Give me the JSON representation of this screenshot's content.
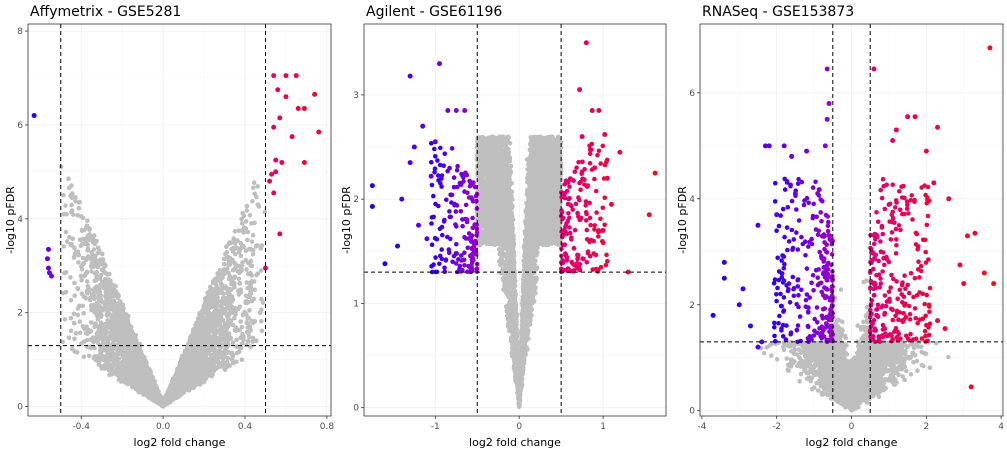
{
  "colors": {
    "nonsignificant": "#bebebe",
    "down_gradient": [
      "#1400f0",
      "#9900cc"
    ],
    "up_gradient": [
      "#dd0077",
      "#ee1111"
    ],
    "threshold_line": "#000000",
    "grid": "#ebebeb",
    "panel_border": "#333333"
  },
  "chart_data": [
    {
      "type": "scatter",
      "title": "Affymetrix - GSE5281",
      "xlabel": "log2 fold change",
      "ylabel": "-log10 pFDR",
      "xlim": [
        -0.66,
        0.82
      ],
      "ylim": [
        -0.2,
        8.15
      ],
      "xticks": [
        -0.4,
        0.0,
        0.4,
        0.8
      ],
      "xtick_labels": [
        "-0.4",
        "0.0",
        "0.4",
        "0.8"
      ],
      "yticks": [
        0,
        2,
        4,
        6,
        8
      ],
      "ytick_labels": [
        "0",
        "2",
        "4",
        "6",
        "8"
      ],
      "fc_threshold": [
        -0.5,
        0.5
      ],
      "pfdr_threshold": 1.3,
      "grid": true,
      "legend": "none",
      "density": {
        "n": 4500,
        "xscale": 0.2,
        "ystretch": 0.11,
        "spread": 0.1,
        "xfactor": 0.06,
        "baseline": 0,
        "ymax": 7.1,
        "seed": 11
      },
      "down_points": [
        {
          "x": -0.63,
          "y": 6.2
        },
        {
          "x": -0.56,
          "y": 3.35
        },
        {
          "x": -0.565,
          "y": 3.15
        },
        {
          "x": -0.56,
          "y": 2.95
        },
        {
          "x": -0.555,
          "y": 2.85
        },
        {
          "x": -0.545,
          "y": 2.78
        }
      ],
      "up_points": [
        {
          "x": 0.54,
          "y": 7.05
        },
        {
          "x": 0.6,
          "y": 7.05
        },
        {
          "x": 0.65,
          "y": 7.05
        },
        {
          "x": 0.56,
          "y": 6.75
        },
        {
          "x": 0.6,
          "y": 6.6
        },
        {
          "x": 0.74,
          "y": 6.65
        },
        {
          "x": 0.76,
          "y": 5.85
        },
        {
          "x": 0.66,
          "y": 6.35
        },
        {
          "x": 0.69,
          "y": 6.35
        },
        {
          "x": 0.57,
          "y": 6.15
        },
        {
          "x": 0.54,
          "y": 5.95
        },
        {
          "x": 0.63,
          "y": 5.75
        },
        {
          "x": 0.55,
          "y": 5.25
        },
        {
          "x": 0.58,
          "y": 5.2
        },
        {
          "x": 0.69,
          "y": 5.2
        },
        {
          "x": 0.55,
          "y": 5.0
        },
        {
          "x": 0.52,
          "y": 4.8
        },
        {
          "x": 0.54,
          "y": 4.55
        },
        {
          "x": 0.57,
          "y": 3.68
        },
        {
          "x": 0.5,
          "y": 2.95
        },
        {
          "x": 0.53,
          "y": 4.95
        }
      ]
    },
    {
      "type": "scatter",
      "title": "Agilent - GSE61196",
      "xlabel": "log2 fold change",
      "ylabel": "-log10 pFDR",
      "xlim": [
        -1.85,
        1.75
      ],
      "ylim": [
        -0.08,
        3.68
      ],
      "xticks": [
        -1,
        0,
        1
      ],
      "xtick_labels": [
        "-1",
        "0",
        "1"
      ],
      "yticks": [
        0,
        1,
        2,
        3
      ],
      "ytick_labels": [
        "0",
        "1",
        "2",
        "3"
      ],
      "fc_threshold": [
        -0.5,
        0.5
      ],
      "pfdr_threshold": 1.3,
      "grid": true,
      "legend": "none",
      "density": {
        "n": 6500,
        "xscale": 0.42,
        "ystretch": 0.28,
        "spread": 0.22,
        "xfactor": 0.07,
        "baseline": 0,
        "ymax": 2.6,
        "seed": 22
      },
      "band": {
        "n": 340,
        "seed": 33
      },
      "down_points": [
        {
          "x": -1.75,
          "y": 2.13
        },
        {
          "x": -1.75,
          "y": 1.93
        },
        {
          "x": -1.6,
          "y": 1.38
        },
        {
          "x": -1.4,
          "y": 2.0
        },
        {
          "x": -1.3,
          "y": 2.35
        },
        {
          "x": -1.25,
          "y": 2.5
        },
        {
          "x": -1.15,
          "y": 2.7
        },
        {
          "x": -1.05,
          "y": 2.22
        },
        {
          "x": -1.3,
          "y": 3.18
        },
        {
          "x": -0.95,
          "y": 3.3
        },
        {
          "x": -0.85,
          "y": 2.85
        },
        {
          "x": -0.75,
          "y": 2.85
        },
        {
          "x": -0.65,
          "y": 2.85
        },
        {
          "x": -1.0,
          "y": 2.55
        },
        {
          "x": -1.1,
          "y": 1.62
        },
        {
          "x": -1.45,
          "y": 1.55
        },
        {
          "x": -1.2,
          "y": 1.75
        }
      ],
      "up_points": [
        {
          "x": 0.8,
          "y": 3.5
        },
        {
          "x": 0.72,
          "y": 3.05
        },
        {
          "x": 0.87,
          "y": 2.85
        },
        {
          "x": 0.95,
          "y": 2.85
        },
        {
          "x": 0.75,
          "y": 2.6
        },
        {
          "x": 1.02,
          "y": 2.62
        },
        {
          "x": 1.2,
          "y": 2.45
        },
        {
          "x": 1.3,
          "y": 1.3
        },
        {
          "x": 1.55,
          "y": 1.85
        },
        {
          "x": 1.62,
          "y": 2.25
        },
        {
          "x": 1.05,
          "y": 2.2
        },
        {
          "x": 1.1,
          "y": 1.95
        },
        {
          "x": 0.9,
          "y": 2.3
        },
        {
          "x": 1.0,
          "y": 1.7
        }
      ]
    },
    {
      "type": "scatter",
      "title": "RNASeq - GSE153873",
      "xlabel": "log2 fold change",
      "ylabel": "-log10 pFDR",
      "xlim": [
        -4.05,
        4.05
      ],
      "ylim": [
        -0.1,
        7.3
      ],
      "xticks": [
        -4,
        -2,
        0,
        2,
        4
      ],
      "xtick_labels": [
        "-4",
        "-2",
        "0",
        "2",
        "4"
      ],
      "yticks": [
        0,
        2,
        4,
        6
      ],
      "ytick_labels": [
        "0",
        "2",
        "4",
        "6"
      ],
      "fc_threshold": [
        -0.5,
        0.5
      ],
      "pfdr_threshold": 1.3,
      "grid": true,
      "legend": "none",
      "density": {
        "n": 6500,
        "xscale": 1.1,
        "ystretch": 0.07,
        "spread": 0.75,
        "xfactor": 0.28,
        "baseline": 0.5,
        "ymax": 5.8,
        "seed": 44
      },
      "band": {
        "n": 520,
        "seed": 55
      },
      "down_points": [
        {
          "x": -3.7,
          "y": 1.8
        },
        {
          "x": -3.4,
          "y": 2.5
        },
        {
          "x": -3.4,
          "y": 2.8
        },
        {
          "x": -3.0,
          "y": 2.0
        },
        {
          "x": -2.9,
          "y": 2.3
        },
        {
          "x": -2.7,
          "y": 1.6
        },
        {
          "x": -2.5,
          "y": 1.2
        },
        {
          "x": -2.4,
          "y": 1.3
        },
        {
          "x": -2.3,
          "y": 5.0
        },
        {
          "x": -2.2,
          "y": 5.0
        },
        {
          "x": -1.8,
          "y": 5.0
        },
        {
          "x": -1.6,
          "y": 4.8
        },
        {
          "x": -2.0,
          "y": 3.7
        },
        {
          "x": -0.65,
          "y": 6.45
        },
        {
          "x": -0.6,
          "y": 5.8
        },
        {
          "x": -0.65,
          "y": 5.5
        },
        {
          "x": -0.7,
          "y": 5.0
        },
        {
          "x": -1.2,
          "y": 4.9
        },
        {
          "x": -1.5,
          "y": 4.1
        },
        {
          "x": -2.5,
          "y": 3.5
        }
      ],
      "up_points": [
        {
          "x": 3.7,
          "y": 6.85
        },
        {
          "x": 0.6,
          "y": 6.45
        },
        {
          "x": 1.5,
          "y": 5.55
        },
        {
          "x": 1.7,
          "y": 5.55
        },
        {
          "x": 2.3,
          "y": 5.35
        },
        {
          "x": 1.2,
          "y": 5.3
        },
        {
          "x": 1.1,
          "y": 5.1
        },
        {
          "x": 2.0,
          "y": 4.9
        },
        {
          "x": 3.1,
          "y": 3.3
        },
        {
          "x": 3.3,
          "y": 3.35
        },
        {
          "x": 3.55,
          "y": 2.6
        },
        {
          "x": 3.8,
          "y": 2.4
        },
        {
          "x": 2.9,
          "y": 2.75
        },
        {
          "x": 3.0,
          "y": 2.4
        },
        {
          "x": 2.3,
          "y": 1.7
        },
        {
          "x": 2.5,
          "y": 1.55
        },
        {
          "x": 3.2,
          "y": 0.45
        },
        {
          "x": 2.6,
          "y": 4.0
        },
        {
          "x": 2.2,
          "y": 4.3
        }
      ]
    }
  ]
}
